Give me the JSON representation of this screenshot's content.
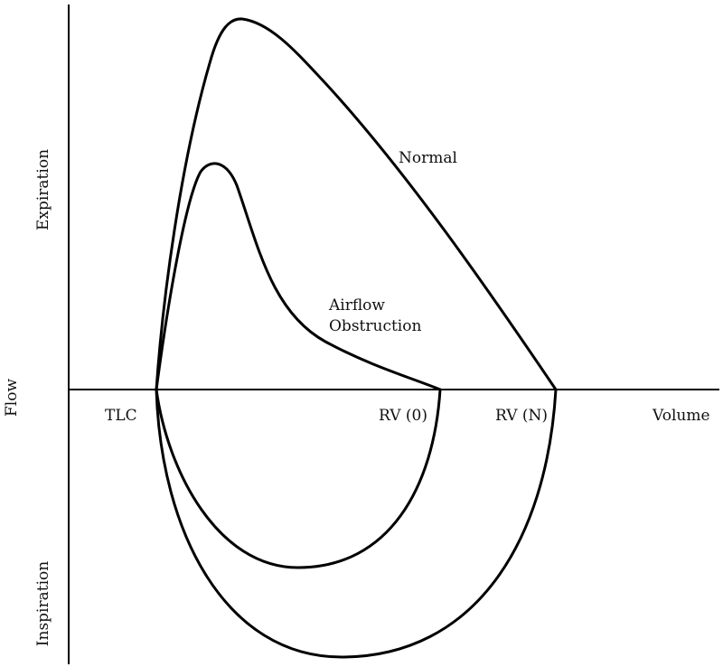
{
  "axes": {
    "y_label": "Flow",
    "x_label": "Volume",
    "upper_label": "Expiration",
    "lower_label": "Inspiration"
  },
  "markers": {
    "tlc": "TLC",
    "rv_obstruction": "RV (0)",
    "rv_normal": "RV (N)"
  },
  "curves": {
    "normal": "Normal",
    "obstruction_line1": "Airflow",
    "obstruction_line2": "Obstruction"
  }
}
